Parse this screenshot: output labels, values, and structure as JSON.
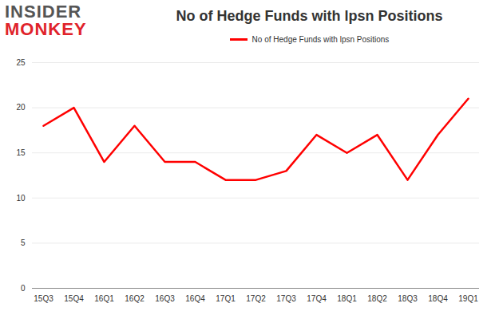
{
  "chart_data": {
    "type": "line",
    "title": "No of Hedge Funds with lpsn Positions",
    "annotations": [
      "INSIDER",
      "MONKEY"
    ],
    "categories": [
      "15Q3",
      "15Q4",
      "16Q1",
      "16Q2",
      "16Q3",
      "16Q4",
      "17Q1",
      "17Q2",
      "17Q3",
      "17Q4",
      "18Q1",
      "18Q2",
      "18Q3",
      "18Q4",
      "19Q1"
    ],
    "series": [
      {
        "name": "No of Hedge Funds with lpsn Positions",
        "color": "#ff0000",
        "values": [
          18,
          20,
          14,
          18,
          14,
          14,
          12,
          12,
          13,
          17,
          15,
          17,
          12,
          17,
          21
        ]
      }
    ],
    "ylim": [
      0,
      25
    ],
    "yticks": [
      0,
      5,
      10,
      15,
      20,
      25
    ],
    "grid": true,
    "legend": "top"
  }
}
